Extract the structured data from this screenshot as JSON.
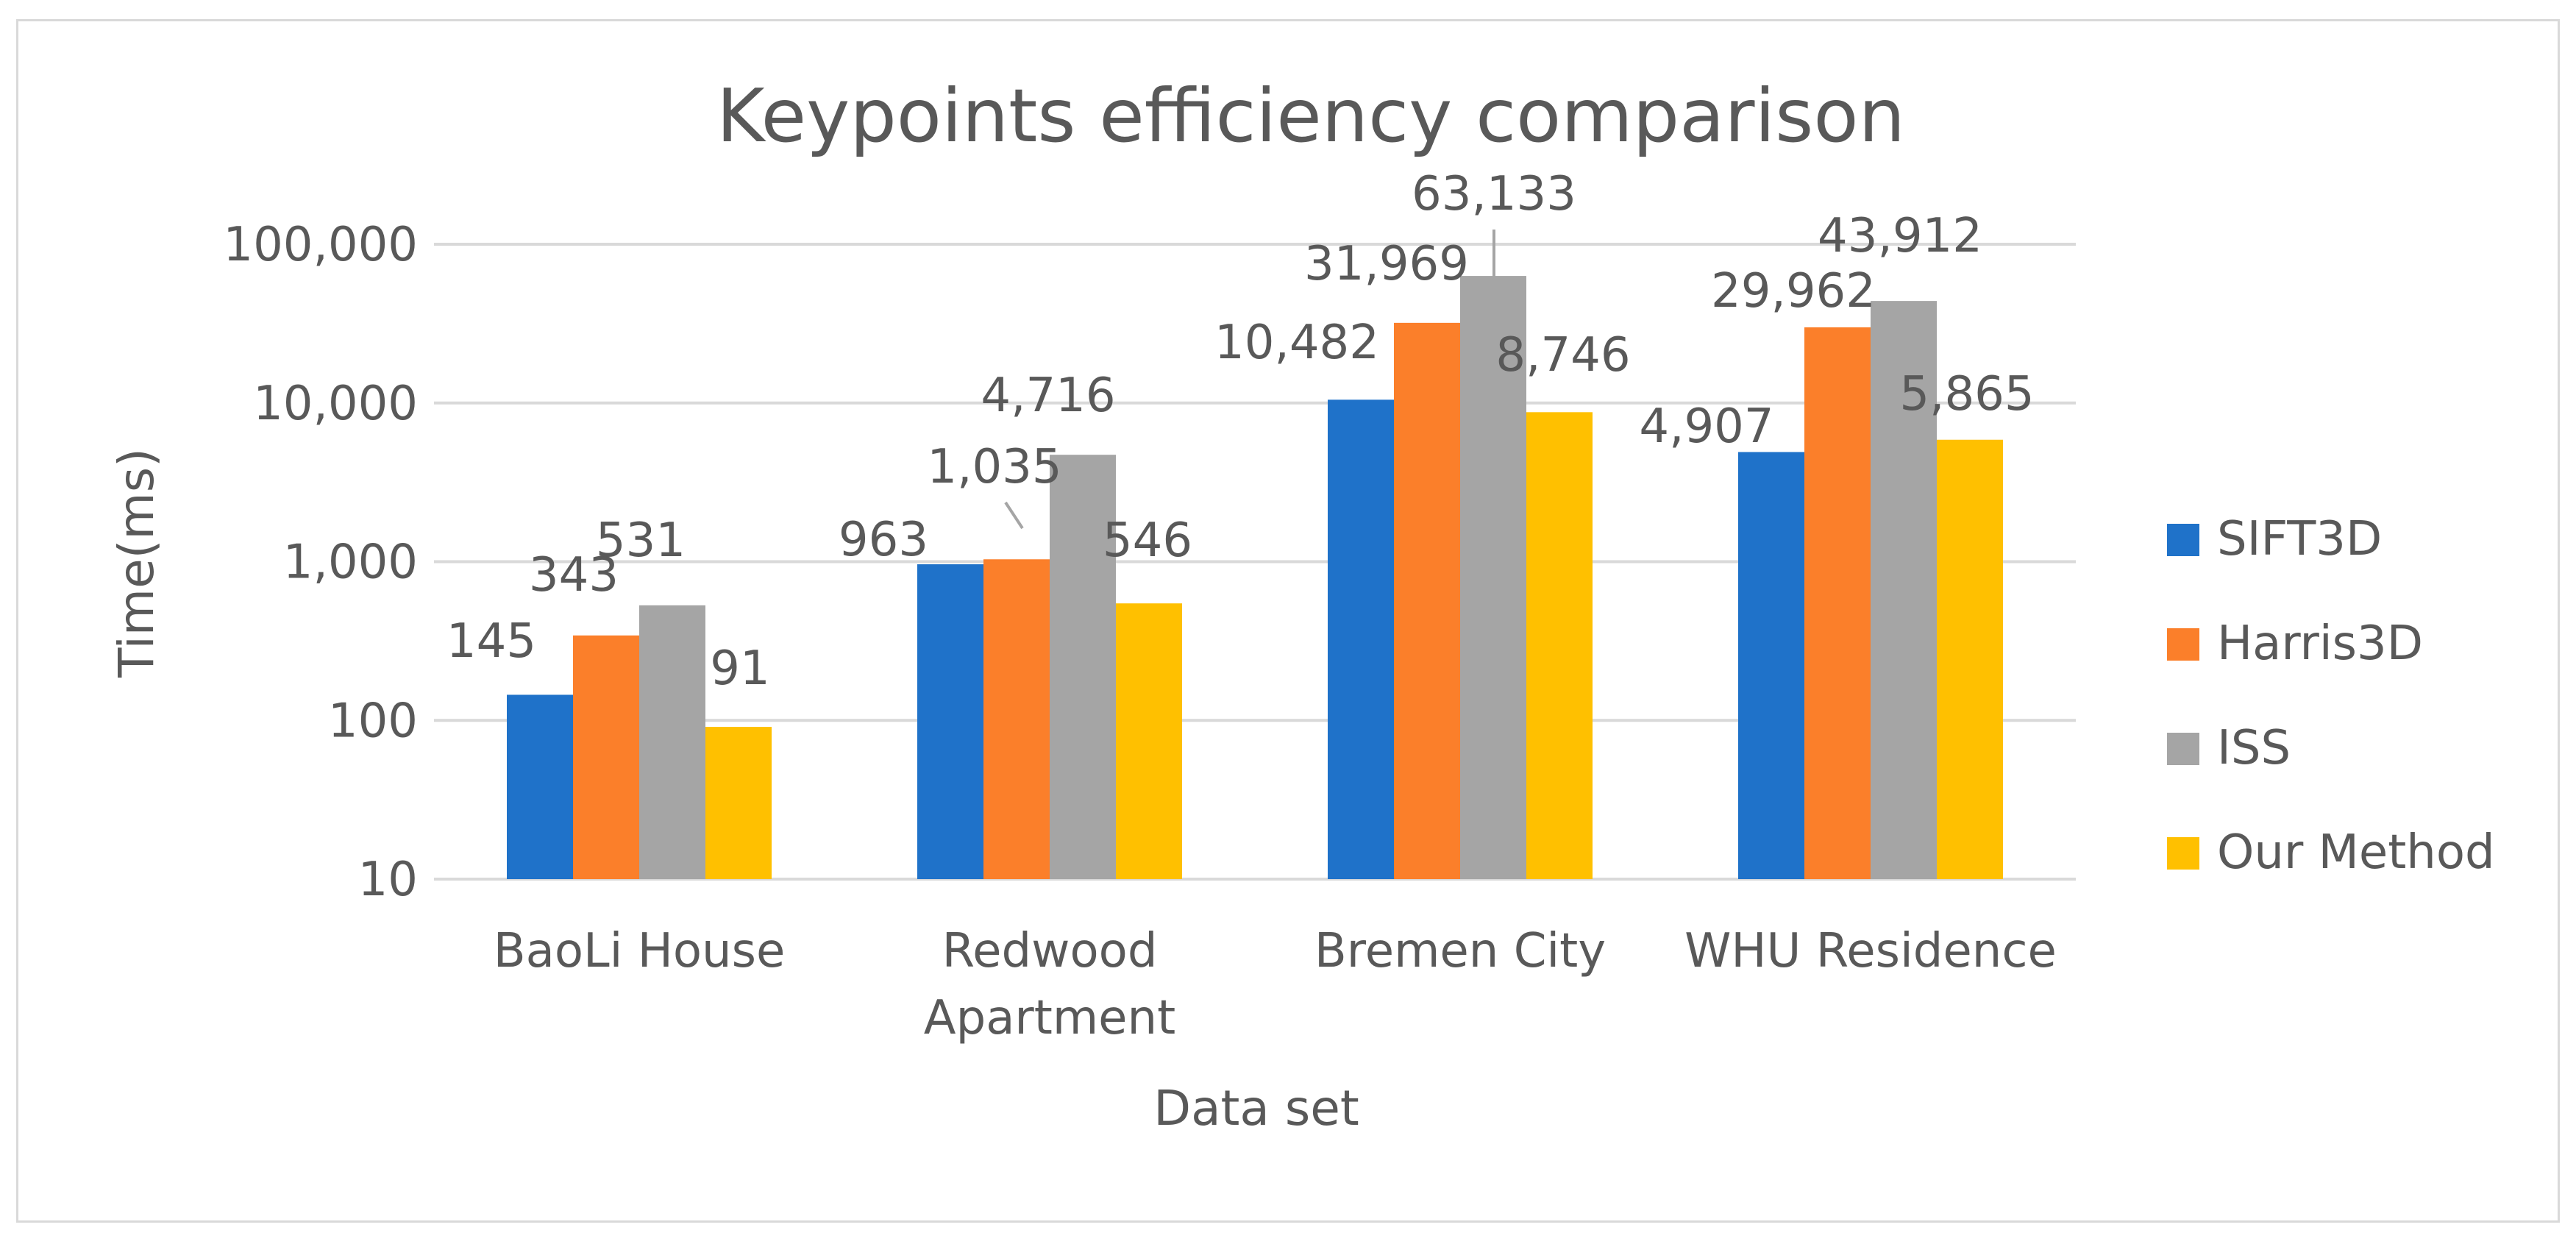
{
  "chart_data": {
    "type": "bar",
    "title": "Keypoints efficiency comparison",
    "xlabel": "Data set",
    "ylabel": "Time(ms)",
    "yscale": "log",
    "ylim": [
      10,
      100000
    ],
    "yticks": [
      10,
      100,
      1000,
      10000,
      100000
    ],
    "ytick_labels": [
      "10",
      "100",
      "1,000",
      "10,000",
      "100,000"
    ],
    "categories": [
      [
        "BaoLi House"
      ],
      [
        "Redwood",
        "Apartment"
      ],
      [
        "Bremen City"
      ],
      [
        "WHU Residence"
      ]
    ],
    "series": [
      {
        "name": "SIFT3D",
        "color": "#1f72c9",
        "values": [
          145,
          963,
          10482,
          4907
        ],
        "labels": [
          "145",
          "963",
          "10,482",
          "4,907"
        ]
      },
      {
        "name": "Harris3D",
        "color": "#fb7f2a",
        "values": [
          343,
          1035,
          31969,
          29962
        ],
        "labels": [
          "343",
          "1,035",
          "31,969",
          "29,962"
        ]
      },
      {
        "name": "ISS",
        "color": "#a5a5a5",
        "values": [
          531,
          4716,
          63133,
          43912
        ],
        "labels": [
          "531",
          "4,716",
          "63,133",
          "43,912"
        ]
      },
      {
        "name": "Our Method",
        "color": "#ffc000",
        "values": [
          91,
          546,
          8746,
          5865
        ],
        "labels": [
          "91",
          "546",
          "8,746",
          "5,865"
        ]
      }
    ],
    "legend_position": "right",
    "grid": true
  }
}
